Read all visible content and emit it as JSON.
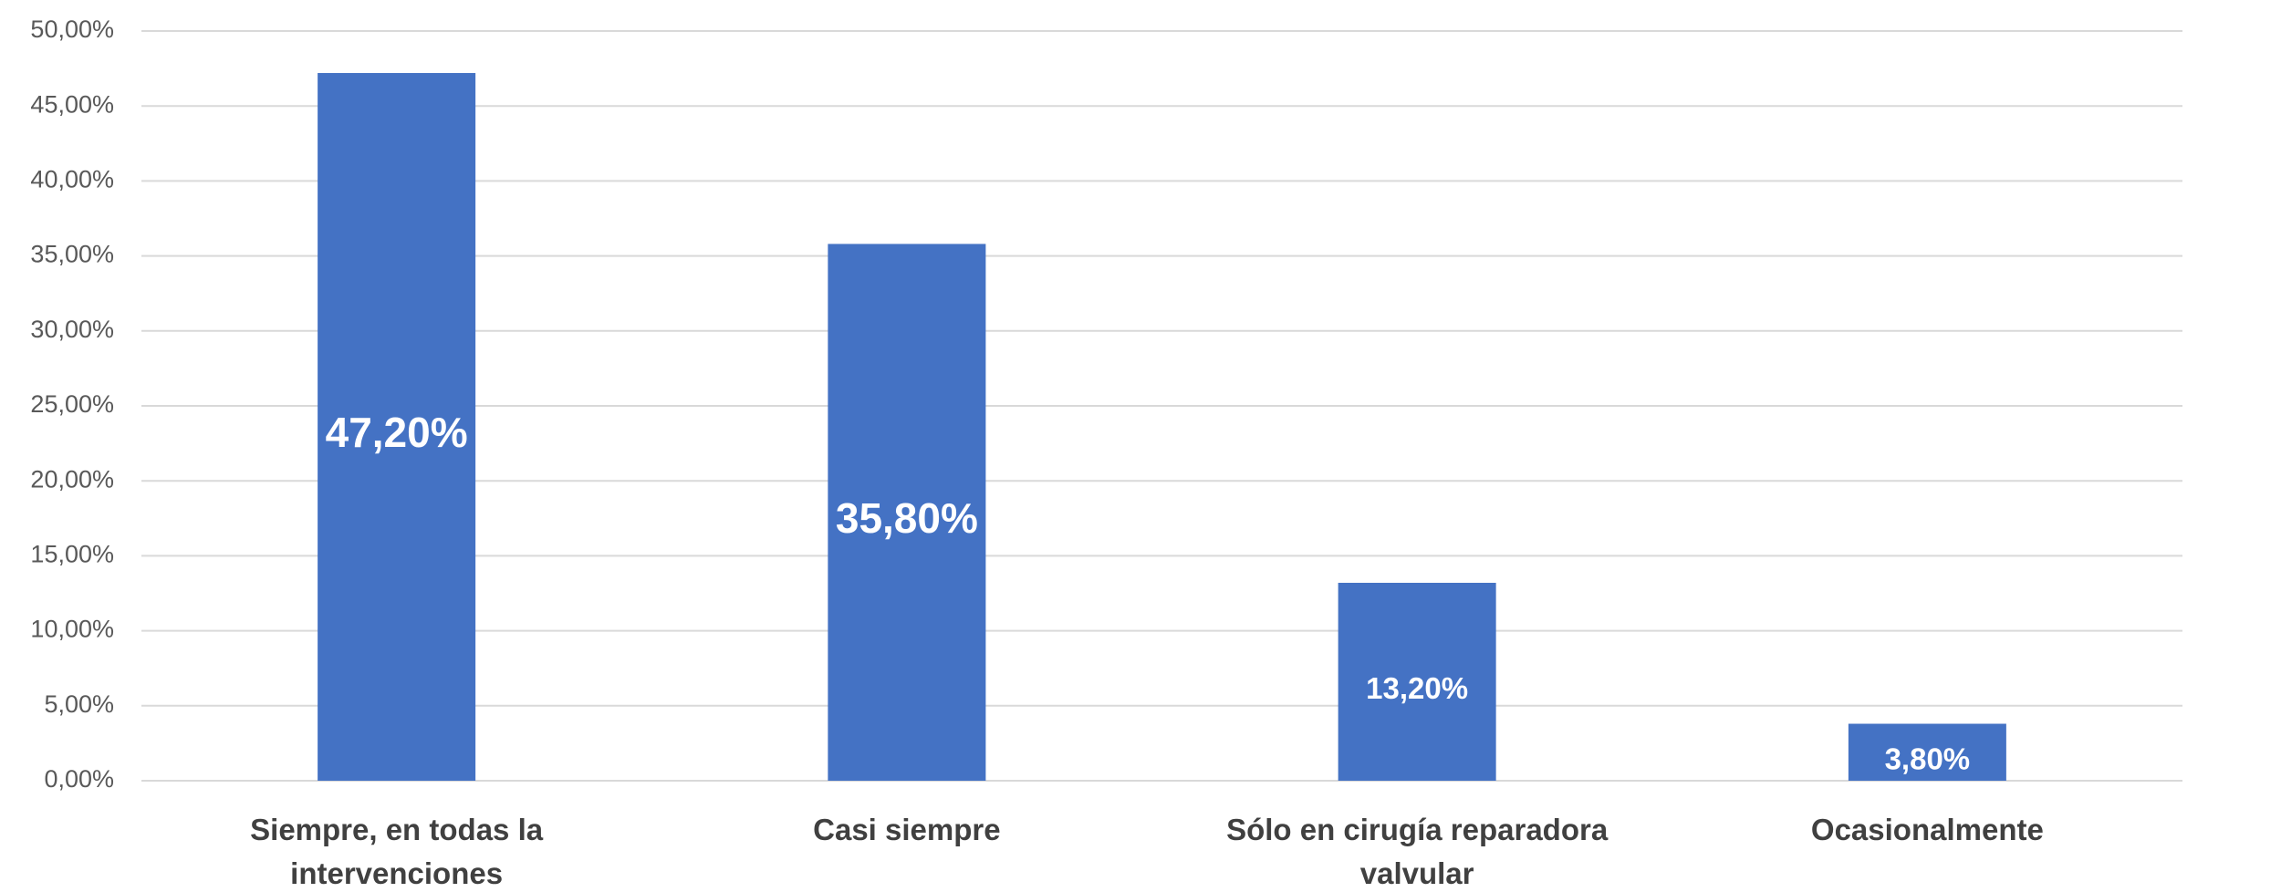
{
  "chart_data": {
    "type": "bar",
    "categories": [
      "Siempre, en todas la intervenciones",
      "Casi siempre",
      "Sólo en cirugía reparadora valvular",
      "Ocasionalmente"
    ],
    "values": [
      47.2,
      35.8,
      13.2,
      3.8
    ],
    "value_labels": [
      "47,20%",
      "35,80%",
      "13,20%",
      "3,80%"
    ],
    "color": "#4472c4",
    "ylim": [
      0,
      50
    ],
    "yticks": [
      {
        "value": 0,
        "label": "0,00%"
      },
      {
        "value": 5,
        "label": "5,00%"
      },
      {
        "value": 10,
        "label": "10,00%"
      },
      {
        "value": 15,
        "label": "15,00%"
      },
      {
        "value": 20,
        "label": "20,00%"
      },
      {
        "value": 25,
        "label": "25,00%"
      },
      {
        "value": 30,
        "label": "30,00%"
      },
      {
        "value": 35,
        "label": "35,00%"
      },
      {
        "value": 40,
        "label": "40,00%"
      },
      {
        "value": 45,
        "label": "45,00%"
      },
      {
        "value": 50,
        "label": "50,00%"
      }
    ],
    "grid": true
  }
}
